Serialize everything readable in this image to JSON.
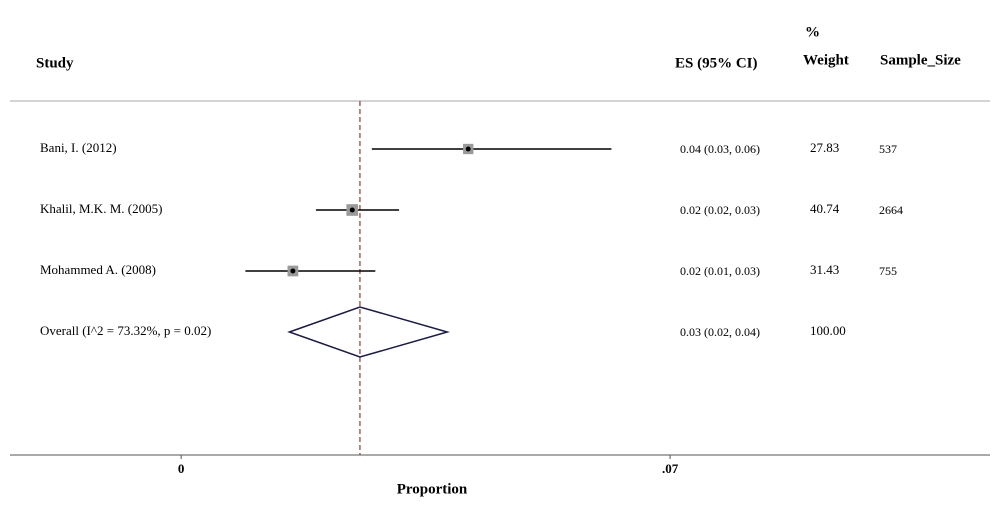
{
  "chart_data": {
    "type": "forest",
    "headers": {
      "study": "Study",
      "es": "ES (95% CI)",
      "weight_symbol": "%",
      "weight": "Weight",
      "sample_size": "Sample_Size"
    },
    "categories": [
      "Bani, I. (2012)",
      "Khalil, M.K. M. (2005)",
      "Mohammed A. (2008)"
    ],
    "values": [
      0.0411,
      0.0245,
      0.016
    ],
    "lower": [
      0.0273,
      0.0193,
      0.0092
    ],
    "upper": [
      0.0616,
      0.0312,
      0.0278
    ],
    "value_labels": [
      "0.04 (0.03, 0.06)",
      "0.02 (0.02, 0.03)",
      "0.02 (0.01, 0.03)"
    ],
    "weights": [
      "27.83",
      "40.74",
      "31.43"
    ],
    "sample_sizes": [
      537,
      2664,
      755
    ],
    "overall": {
      "label": "Overall (I^2 = 73.32%, p = 0.02)",
      "value": 0.0256,
      "lower": 0.0155,
      "upper": 0.0381,
      "value_label": "0.03 (0.02, 0.04)",
      "weight": "100.00"
    },
    "reference_line": 0.0256,
    "reference_color": "#8b3a3a",
    "marker_color": "#9a9a9a",
    "xlabel": "Proportion",
    "xlim": [
      -0.0245,
      0.1158
    ],
    "xticks": [
      0,
      {
        "value": 0.07,
        "label": ".07"
      }
    ]
  }
}
